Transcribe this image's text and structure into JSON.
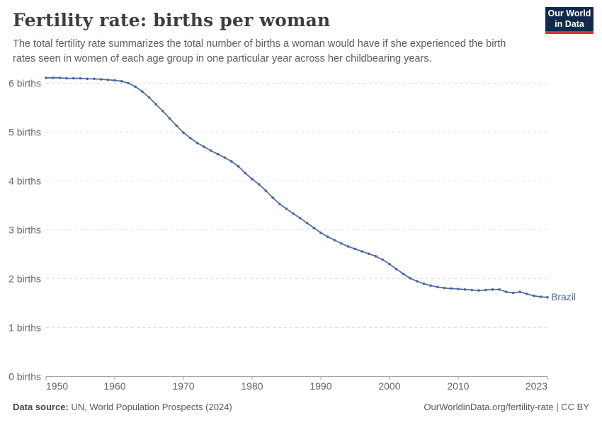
{
  "header": {
    "title": "Fertility rate: births per woman",
    "subtitle": "The total fertility rate summarizes the total number of births a woman would have if she experienced the birth rates seen in women of each age group in one particular year across her childbearing years.",
    "logo": {
      "line1": "Our World",
      "line2": "in Data"
    }
  },
  "chart_data": {
    "type": "line",
    "title": "Fertility rate: births per woman",
    "entity_label": "Brazil",
    "xlabel": "",
    "ylabel": "births",
    "x_range": [
      1950,
      2023
    ],
    "ylim": [
      0,
      6.4
    ],
    "grid": "horizontal-dashed",
    "legend_position": "end-of-line",
    "xticks": [
      1950,
      1960,
      1970,
      1980,
      1990,
      2000,
      2010,
      2023
    ],
    "y_tick_labels": [
      "0 births",
      "1 births",
      "2 births",
      "3 births",
      "4 births",
      "5 births",
      "6 births"
    ],
    "x": [
      1950,
      1951,
      1952,
      1953,
      1954,
      1955,
      1956,
      1957,
      1958,
      1959,
      1960,
      1961,
      1962,
      1963,
      1964,
      1965,
      1966,
      1967,
      1968,
      1969,
      1970,
      1971,
      1972,
      1973,
      1974,
      1975,
      1976,
      1977,
      1978,
      1979,
      1980,
      1981,
      1982,
      1983,
      1984,
      1985,
      1986,
      1987,
      1988,
      1989,
      1990,
      1991,
      1992,
      1993,
      1994,
      1995,
      1996,
      1997,
      1998,
      1999,
      2000,
      2001,
      2002,
      2003,
      2004,
      2005,
      2006,
      2007,
      2008,
      2009,
      2010,
      2011,
      2012,
      2013,
      2014,
      2015,
      2016,
      2017,
      2018,
      2019,
      2020,
      2021,
      2022,
      2023
    ],
    "series": [
      {
        "name": "Brazil",
        "values": [
          6.11,
          6.11,
          6.11,
          6.1,
          6.1,
          6.1,
          6.09,
          6.09,
          6.08,
          6.07,
          6.06,
          6.04,
          6.0,
          5.93,
          5.83,
          5.71,
          5.57,
          5.43,
          5.28,
          5.13,
          4.99,
          4.88,
          4.78,
          4.7,
          4.62,
          4.55,
          4.48,
          4.4,
          4.3,
          4.16,
          4.04,
          3.93,
          3.8,
          3.66,
          3.53,
          3.43,
          3.33,
          3.24,
          3.14,
          3.04,
          2.94,
          2.86,
          2.79,
          2.72,
          2.66,
          2.61,
          2.56,
          2.51,
          2.46,
          2.39,
          2.3,
          2.2,
          2.1,
          2.01,
          1.95,
          1.9,
          1.86,
          1.83,
          1.81,
          1.8,
          1.79,
          1.78,
          1.77,
          1.76,
          1.77,
          1.78,
          1.78,
          1.73,
          1.71,
          1.73,
          1.69,
          1.65,
          1.63,
          1.62
        ]
      }
    ],
    "colors": {
      "line": "#4a69a0",
      "entity_label": "#4c6a9c",
      "gridline": "#dcdcdc",
      "axis": "#a5a5a5",
      "tick_label": "#666666"
    }
  },
  "footer": {
    "source_label": "Data source:",
    "source_text": " UN, World Population Prospects (2024)",
    "right_text": "OurWorldinData.org/fertility-rate | CC BY"
  }
}
